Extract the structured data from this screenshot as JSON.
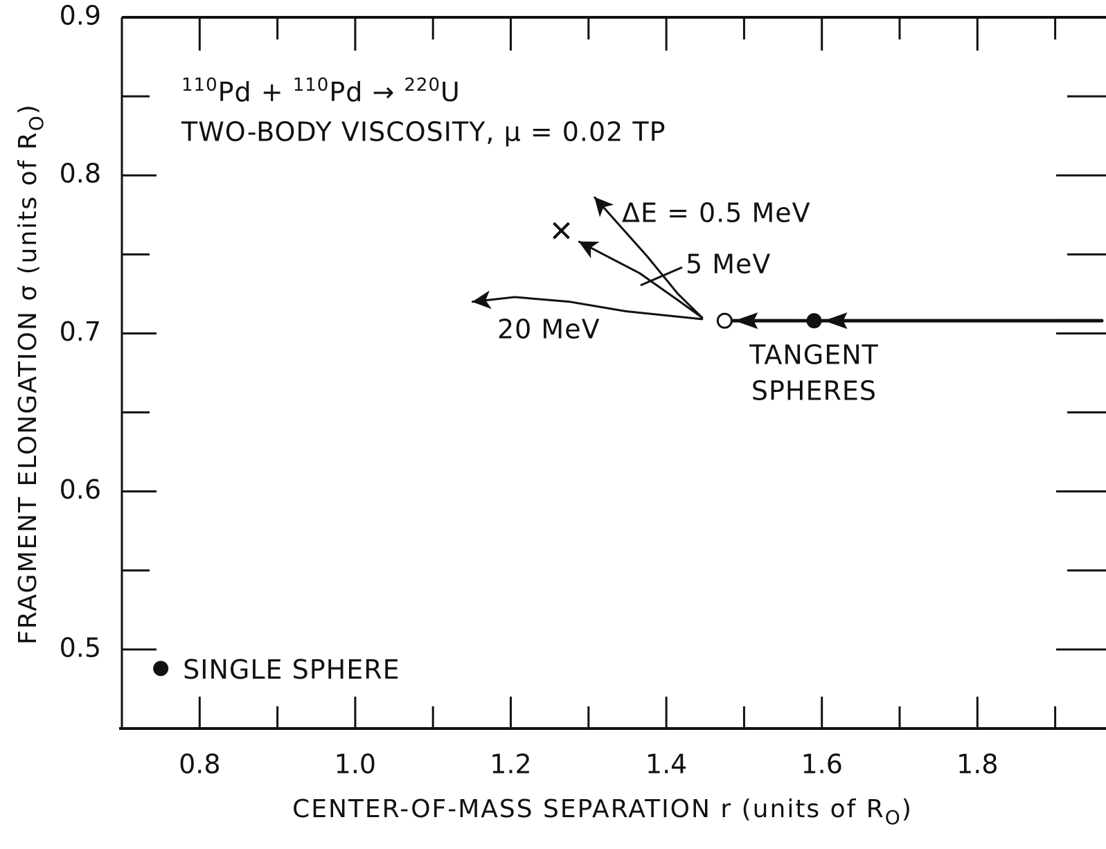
{
  "chart_data": {
    "type": "line",
    "reaction": [
      "110",
      "Pd + ",
      "110",
      "Pd → ",
      "220",
      "U"
    ],
    "subtitle": "TWO-BODY VISCOSITY, μ = 0.02 TP",
    "x_label": [
      "CENTER-OF-MASS SEPARATION r (units of R",
      "O",
      ")"
    ],
    "y_label": [
      "FRAGMENT ELONGATION σ (units of R",
      "O",
      ")"
    ],
    "xlim": [
      0.7,
      1.96
    ],
    "ylim": [
      0.45,
      0.9
    ],
    "xticks": [
      {
        "value": 0.8,
        "label": "0.8"
      },
      {
        "value": 1.0,
        "label": "1.0"
      },
      {
        "value": 1.2,
        "label": "1.2"
      },
      {
        "value": 1.4,
        "label": "1.4"
      },
      {
        "value": 1.6,
        "label": "1.6"
      },
      {
        "value": 1.8,
        "label": "1.8"
      }
    ],
    "xminorticks": [
      0.9,
      1.1,
      1.3,
      1.5,
      1.7,
      1.9
    ],
    "yticks": [
      0.5,
      0.6,
      0.7,
      0.8,
      0.9
    ],
    "yminorticks": [
      0.55,
      0.65,
      0.75,
      0.85
    ],
    "color": "#111111",
    "incoming": {
      "x": [
        1.96,
        1.475
      ],
      "values": [
        0.708,
        0.708
      ]
    },
    "series": [
      {
        "name": "ΔE = 0.5 MeV",
        "x": [
          1.446,
          1.415,
          1.375,
          1.308
        ],
        "values": [
          0.71,
          0.725,
          0.749,
          0.786
        ]
      },
      {
        "name": "5 MeV",
        "x": [
          1.446,
          1.415,
          1.366,
          1.288
        ],
        "values": [
          0.71,
          0.721,
          0.738,
          0.758
        ]
      },
      {
        "name": "20 MeV",
        "x": [
          1.446,
          1.348,
          1.276,
          1.205,
          1.151
        ],
        "values": [
          0.709,
          0.714,
          0.72,
          0.723,
          0.72
        ]
      }
    ],
    "points": [
      {
        "label": [
          "SINGLE SPHERE"
        ],
        "x": 0.75,
        "y": 0.488,
        "marker": "filled"
      },
      {
        "label": [
          "TANGENT",
          "SPHERES"
        ],
        "x": 1.59,
        "y": 0.708,
        "marker": "filled"
      },
      {
        "x": 1.475,
        "y": 0.708,
        "marker": "open"
      },
      {
        "x": 1.265,
        "y": 0.765,
        "marker": "cross"
      }
    ]
  }
}
